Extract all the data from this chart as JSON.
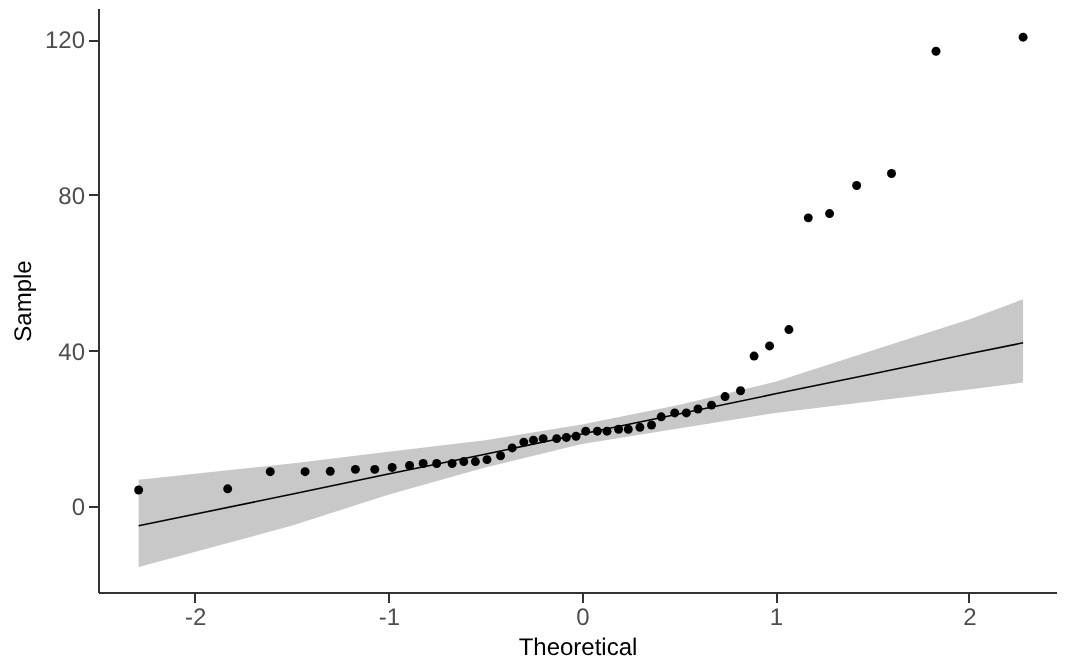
{
  "chart_data": {
    "type": "scatter",
    "xlabel": "Theoretical",
    "ylabel": "Sample",
    "xlim": [
      -2.5,
      2.45
    ],
    "ylim": [
      -22,
      128
    ],
    "xticks": [
      -2,
      -1,
      0,
      1,
      2
    ],
    "yticks": [
      0,
      40,
      80,
      120
    ],
    "grid": false,
    "series": [
      {
        "type": "line",
        "color": "#000000",
        "line_style": "solid",
        "x": [
          -2.29,
          -1.5,
          -1,
          -0.5,
          0,
          0.5,
          1,
          1.5,
          2,
          2.28
        ],
        "values": [
          -5,
          3.1,
          8.3,
          13.4,
          18.6,
          23.7,
          28.9,
          34.0,
          39.2,
          42
        ],
        "lower": [
          -15.6,
          -5,
          3,
          10,
          16,
          20,
          24,
          27,
          30,
          31.8
        ],
        "upper": [
          6.8,
          11,
          14,
          17,
          21,
          26,
          32,
          40,
          48,
          53.2
        ]
      },
      {
        "color": "#000000",
        "marker": "circle",
        "x": [
          -2.29,
          -1.83,
          -1.61,
          -1.43,
          -1.3,
          -1.17,
          -1.07,
          -0.98,
          -0.89,
          -0.82,
          -0.75,
          -0.67,
          -0.61,
          -0.55,
          -0.49,
          -0.42,
          -0.36,
          -0.3,
          -0.25,
          -0.2,
          -0.13,
          -0.08,
          -0.03,
          0.02,
          0.08,
          0.13,
          0.19,
          0.24,
          0.3,
          0.36,
          0.41,
          0.48,
          0.54,
          0.6,
          0.67,
          0.74,
          0.82,
          0.89,
          0.97,
          1.07,
          1.17,
          1.28,
          1.42,
          1.6,
          1.83,
          2.28
        ],
        "values": [
          4.2,
          4.5,
          8.9,
          8.9,
          9,
          9.5,
          9.5,
          10,
          10.5,
          11,
          11,
          11,
          11.5,
          11.5,
          12,
          13,
          15,
          16.5,
          17,
          17.4,
          17.4,
          17.7,
          18,
          19.3,
          19.3,
          19.3,
          19.8,
          19.8,
          20.3,
          20.9,
          23,
          24,
          24,
          25,
          26,
          28.2,
          29.7,
          38.6,
          41.2,
          45.4,
          74.1,
          75.2,
          82.4,
          85.5,
          116.9,
          120.5
        ]
      }
    ]
  }
}
